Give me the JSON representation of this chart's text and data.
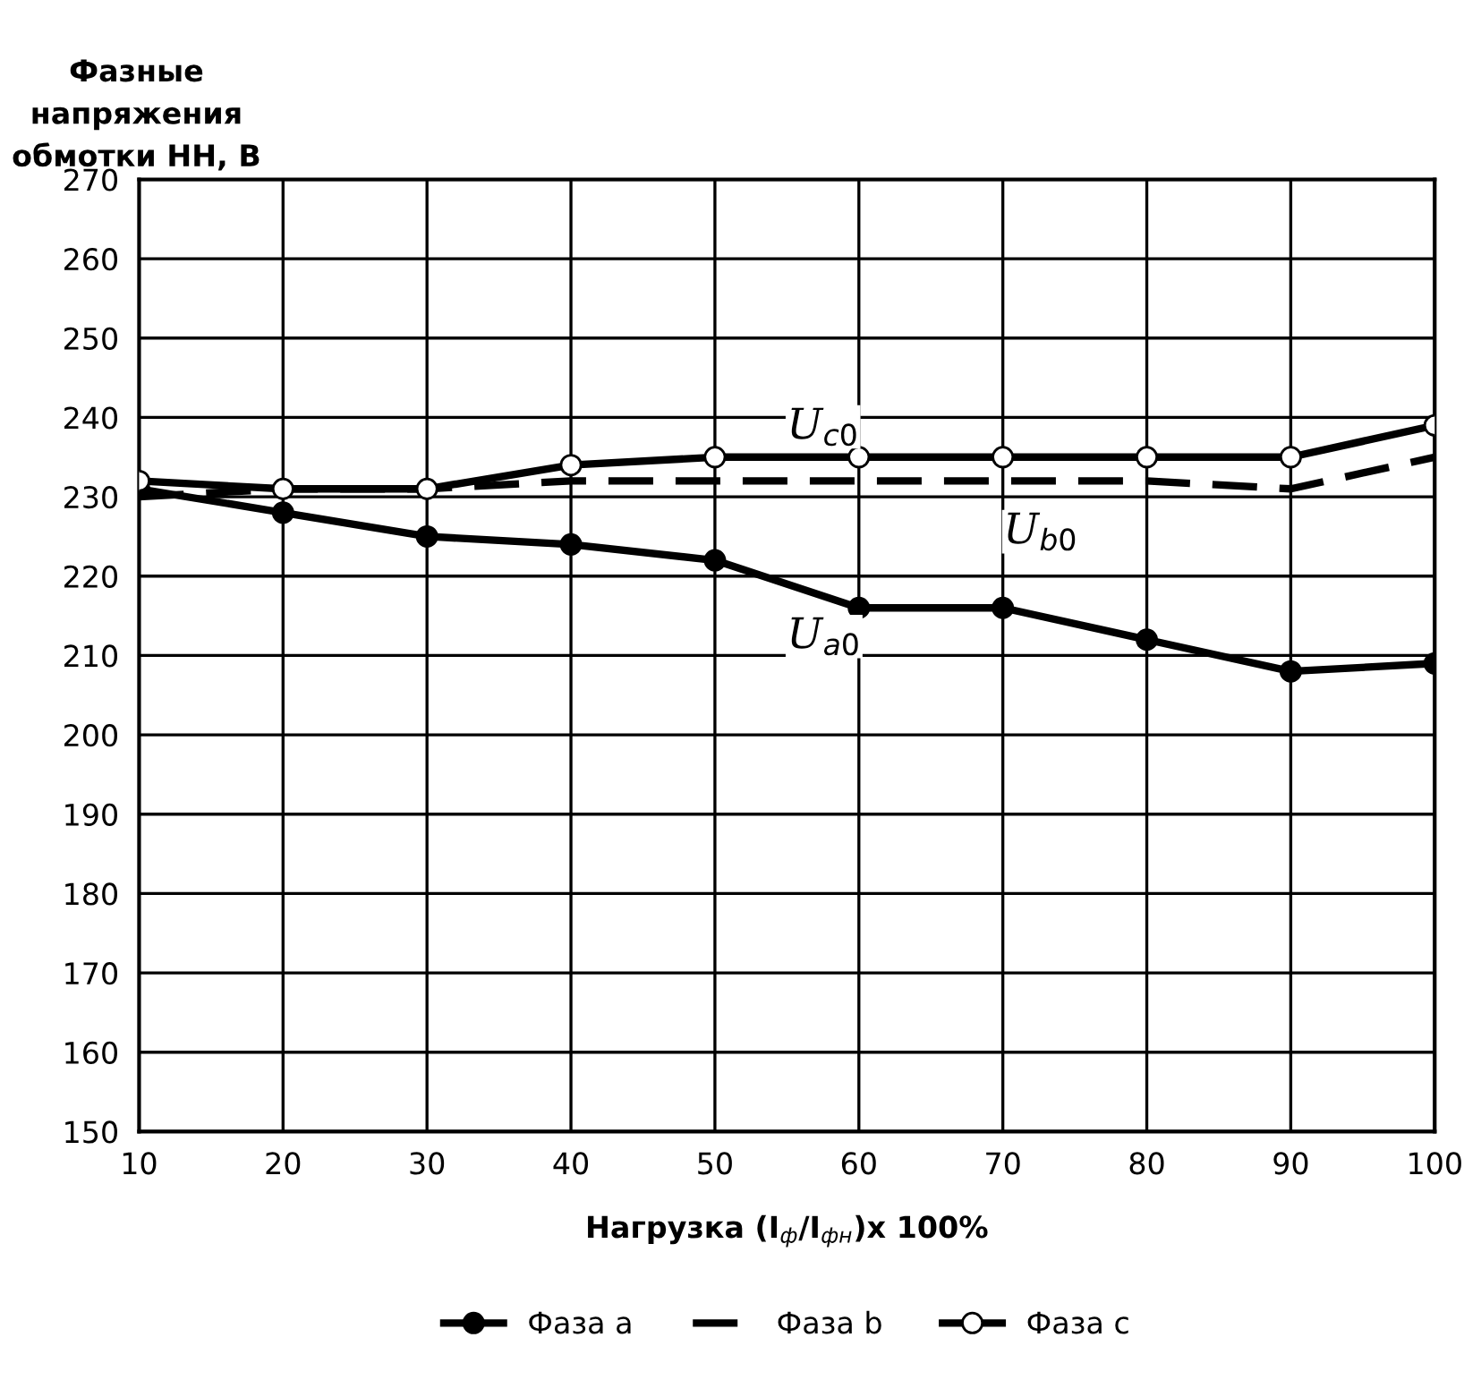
{
  "chart_data": {
    "type": "line",
    "ylabel": "Фазные\nнапряжения\nобмотки НН, В",
    "xlabel": "Нагрузка (I$_{ф}$/I$_{фн}$)x 100%",
    "x": [
      10,
      20,
      30,
      40,
      50,
      60,
      70,
      80,
      90,
      100
    ],
    "series": [
      {
        "name": "Фаза a",
        "color": "#000000",
        "marker": "circle",
        "line_style": "solid",
        "values": [
          231,
          228,
          225,
          224,
          222,
          216,
          216,
          212,
          208,
          209
        ]
      },
      {
        "name": "Фаза b",
        "color": "#000000",
        "marker": "none",
        "line_style": "dashed",
        "values": [
          230,
          231,
          231,
          232,
          232,
          232,
          232,
          232,
          231,
          235
        ]
      },
      {
        "name": "Фаза c",
        "color": "#000000",
        "marker": "circle",
        "line_style": "solid",
        "values": [
          232,
          231,
          231,
          234,
          235,
          235,
          235,
          235,
          235,
          239
        ]
      }
    ],
    "annotations": [
      "U$_{c0}$",
      "U$_{b0}$",
      "U$_{a0}$"
    ],
    "xlim": [
      10,
      100
    ],
    "xticks": [
      10,
      20,
      30,
      40,
      50,
      60,
      70,
      80,
      90,
      100
    ],
    "ylim": [
      150,
      270
    ],
    "yticks": [
      150,
      160,
      170,
      180,
      190,
      200,
      210,
      220,
      230,
      240,
      250,
      260,
      270
    ],
    "grid": true,
    "legend": "bottom"
  }
}
